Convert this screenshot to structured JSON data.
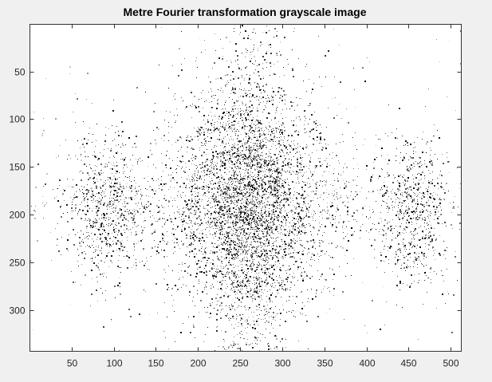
{
  "chart_data": {
    "type": "heatmap",
    "title": "Metre Fourier transformation grayscale image",
    "xlabel": "",
    "ylabel": "",
    "xlim": [
      0.5,
      512.5
    ],
    "ylim": [
      0.5,
      343.5
    ],
    "y_reversed": true,
    "grid": false,
    "colormap": "gray",
    "x_ticks": [
      50,
      100,
      150,
      200,
      250,
      300,
      350,
      400,
      450,
      500
    ],
    "y_ticks": [
      50,
      100,
      150,
      200,
      250,
      300
    ],
    "structure": {
      "center": [
        260,
        190
      ],
      "side_lobes": [
        {
          "center": [
            90,
            195
          ]
        },
        {
          "center": [
            455,
            195
          ]
        }
      ]
    }
  },
  "colors": {
    "figure_background": "#f0f0f0",
    "axes_background": "#ffffff",
    "axes_border": "#333333",
    "tick_label": "#262626",
    "title": "#000000",
    "marks": "#000000"
  }
}
